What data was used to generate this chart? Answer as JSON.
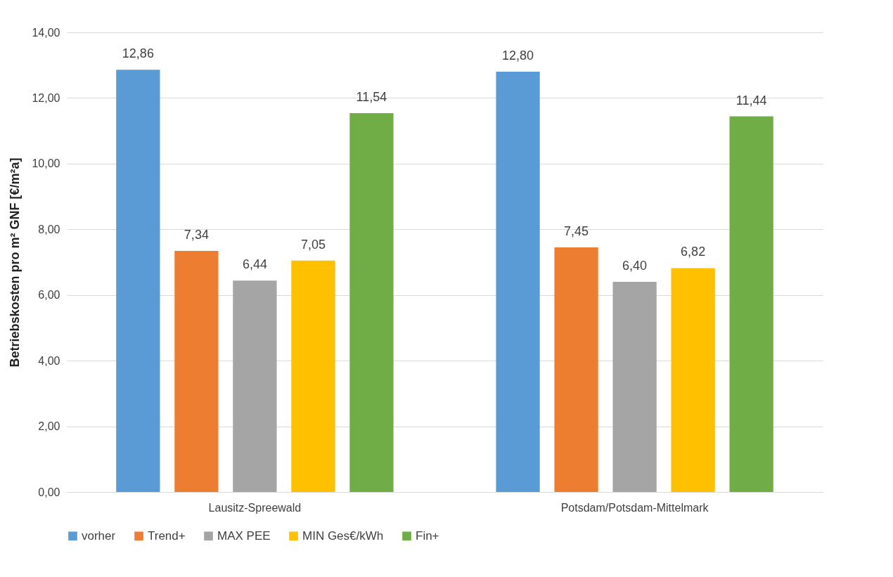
{
  "chart_data": {
    "type": "bar",
    "ylabel": "Betriebskosten pro m² GNF [€/m²a]",
    "categories": [
      "Lausitz-Spreewald",
      "Potsdam/Potsdam-Mittelmark"
    ],
    "series": [
      {
        "name": "vorher",
        "color": "#5b9bd5",
        "values": [
          12.86,
          12.8
        ],
        "value_labels": [
          "12,86",
          "12,80"
        ]
      },
      {
        "name": "Trend+",
        "color": "#ed7d31",
        "values": [
          7.34,
          7.45
        ],
        "value_labels": [
          "7,34",
          "7,45"
        ]
      },
      {
        "name": "MAX PEE",
        "color": "#a5a5a5",
        "values": [
          6.44,
          6.4
        ],
        "value_labels": [
          "6,44",
          "6,40"
        ]
      },
      {
        "name": "MIN Ges€/kWh",
        "color": "#ffc000",
        "values": [
          7.05,
          6.82
        ],
        "value_labels": [
          "7,05",
          "6,82"
        ]
      },
      {
        "name": "Fin+",
        "color": "#70ad47",
        "values": [
          11.54,
          11.44
        ],
        "value_labels": [
          "11,54",
          "11,44"
        ]
      }
    ],
    "ylim": [
      0,
      14
    ],
    "yticks": [
      {
        "value": 0,
        "label": "0,00"
      },
      {
        "value": 2,
        "label": "2,00"
      },
      {
        "value": 4,
        "label": "4,00"
      },
      {
        "value": 6,
        "label": "6,00"
      },
      {
        "value": 8,
        "label": "8,00"
      },
      {
        "value": 10,
        "label": "10,00"
      },
      {
        "value": 12,
        "label": "12,00"
      },
      {
        "value": 14,
        "label": "14,00"
      }
    ],
    "grid": "y",
    "legend": "bottom"
  }
}
